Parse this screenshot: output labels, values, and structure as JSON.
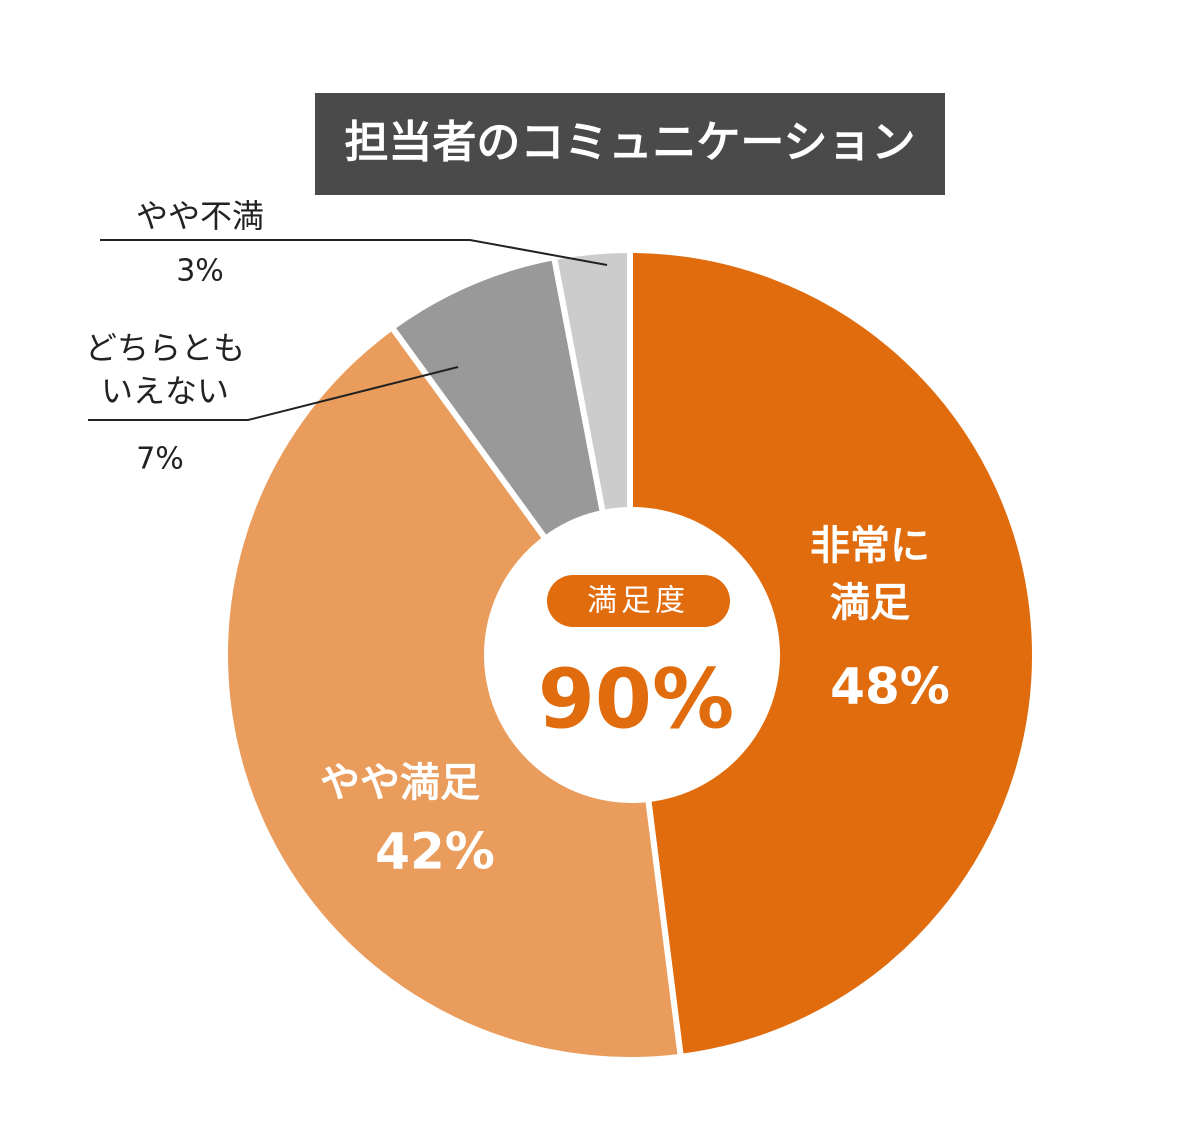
{
  "chart_data": {
    "type": "donut",
    "title": "担当者のコミュニケーション",
    "categories": [
      [
        "非常に",
        "満足"
      ],
      [
        "やや満足"
      ],
      [
        "どちらとも",
        "いえない"
      ],
      [
        "やや不満"
      ]
    ],
    "values": [
      48,
      42,
      7,
      3
    ],
    "value_labels": [
      "48%",
      "42%",
      "7%",
      "3%"
    ],
    "colors": [
      "#e06c0e",
      "#e99c5c",
      "#999999",
      "#cccccc"
    ],
    "center": {
      "label": "満足度",
      "value_label": "90%"
    }
  }
}
